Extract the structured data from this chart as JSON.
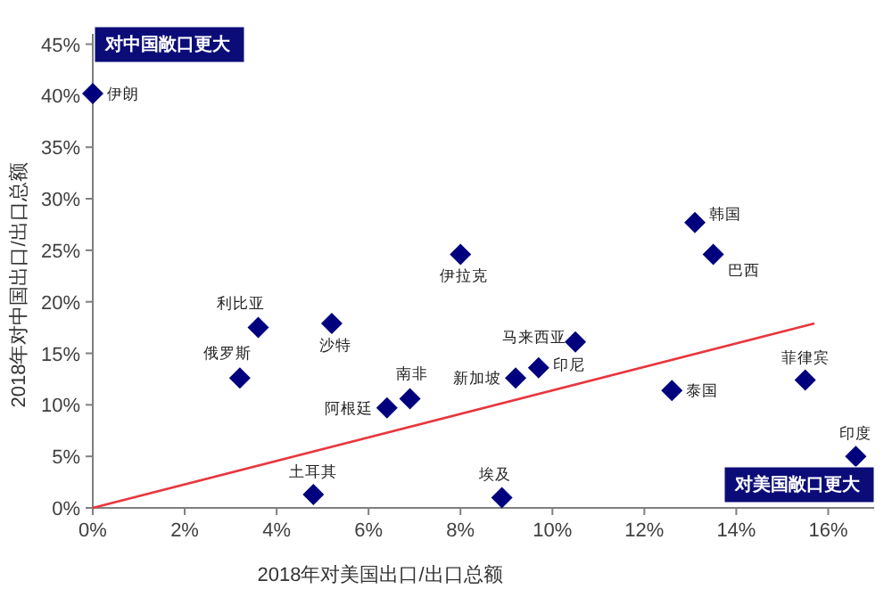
{
  "chart_data": {
    "type": "scatter",
    "xlabel": "2018年对美国出口/出口总额",
    "ylabel": "2018年对中国出口/出口总额",
    "annotations": [
      "对中国敞口更大",
      "对美国敞口更大"
    ],
    "xlim": [
      0,
      17
    ],
    "ylim": [
      0,
      46
    ],
    "xticks": [
      {
        "value": 0,
        "label": "0%"
      },
      {
        "value": 2,
        "label": "2%"
      },
      {
        "value": 4,
        "label": "4%"
      },
      {
        "value": 6,
        "label": "6%"
      },
      {
        "value": 8,
        "label": "8%"
      },
      {
        "value": 10,
        "label": "10%"
      },
      {
        "value": 12,
        "label": "12%"
      },
      {
        "value": 14,
        "label": "14%"
      },
      {
        "value": 16,
        "label": "16%"
      }
    ],
    "yticks": [
      {
        "value": 0,
        "label": "0%"
      },
      {
        "value": 5,
        "label": "5%"
      },
      {
        "value": 10,
        "label": "10%"
      },
      {
        "value": 15,
        "label": "15%"
      },
      {
        "value": 20,
        "label": "20%"
      },
      {
        "value": 25,
        "label": "25%"
      },
      {
        "value": 30,
        "label": "30%"
      },
      {
        "value": 35,
        "label": "35%"
      },
      {
        "value": 40,
        "label": "40%"
      },
      {
        "value": 45,
        "label": "45%"
      }
    ],
    "marker": "diamond",
    "series": [
      {
        "name": "伊朗",
        "color": "#00007f",
        "x": [
          0.0
        ],
        "values": [
          40.2
        ]
      },
      {
        "name": "利比亚",
        "color": "#00007f",
        "x": [
          3.6
        ],
        "values": [
          17.5
        ]
      },
      {
        "name": "俄罗斯",
        "color": "#00007f",
        "x": [
          3.2
        ],
        "values": [
          12.6
        ]
      },
      {
        "name": "沙特",
        "color": "#00007f",
        "x": [
          5.2
        ],
        "values": [
          17.9
        ]
      },
      {
        "name": "阿根廷",
        "color": "#00007f",
        "x": [
          6.4
        ],
        "values": [
          9.7
        ]
      },
      {
        "name": "南非",
        "color": "#00007f",
        "x": [
          6.9
        ],
        "values": [
          10.6
        ]
      },
      {
        "name": "土耳其",
        "color": "#00007f",
        "x": [
          4.8
        ],
        "values": [
          1.3
        ]
      },
      {
        "name": "埃及",
        "color": "#00007f",
        "x": [
          8.9
        ],
        "values": [
          1.0
        ]
      },
      {
        "name": "伊拉克",
        "color": "#00007f",
        "x": [
          8.0
        ],
        "values": [
          24.6
        ]
      },
      {
        "name": "韩国",
        "color": "#00007f",
        "x": [
          13.1
        ],
        "values": [
          27.7
        ]
      },
      {
        "name": "巴西",
        "color": "#00007f",
        "x": [
          13.5
        ],
        "values": [
          24.6
        ]
      },
      {
        "name": "马来西亚",
        "color": "#00007f",
        "x": [
          10.5
        ],
        "values": [
          16.1
        ]
      },
      {
        "name": "新加坡",
        "color": "#00007f",
        "x": [
          9.2
        ],
        "values": [
          12.6
        ]
      },
      {
        "name": "印尼",
        "color": "#00007f",
        "x": [
          9.7
        ],
        "values": [
          13.6
        ]
      },
      {
        "name": "泰国",
        "color": "#00007f",
        "x": [
          12.6
        ],
        "values": [
          11.4
        ]
      },
      {
        "name": "菲律宾",
        "color": "#00007f",
        "x": [
          15.5
        ],
        "values": [
          12.4
        ]
      },
      {
        "name": "印度",
        "color": "#00007f",
        "x": [
          16.6
        ],
        "values": [
          5.0
        ]
      },
      {
        "type": "line",
        "marker": "none",
        "color": "#e8363d",
        "x": [
          0,
          15.7
        ],
        "values": [
          0,
          17.9
        ]
      }
    ]
  }
}
